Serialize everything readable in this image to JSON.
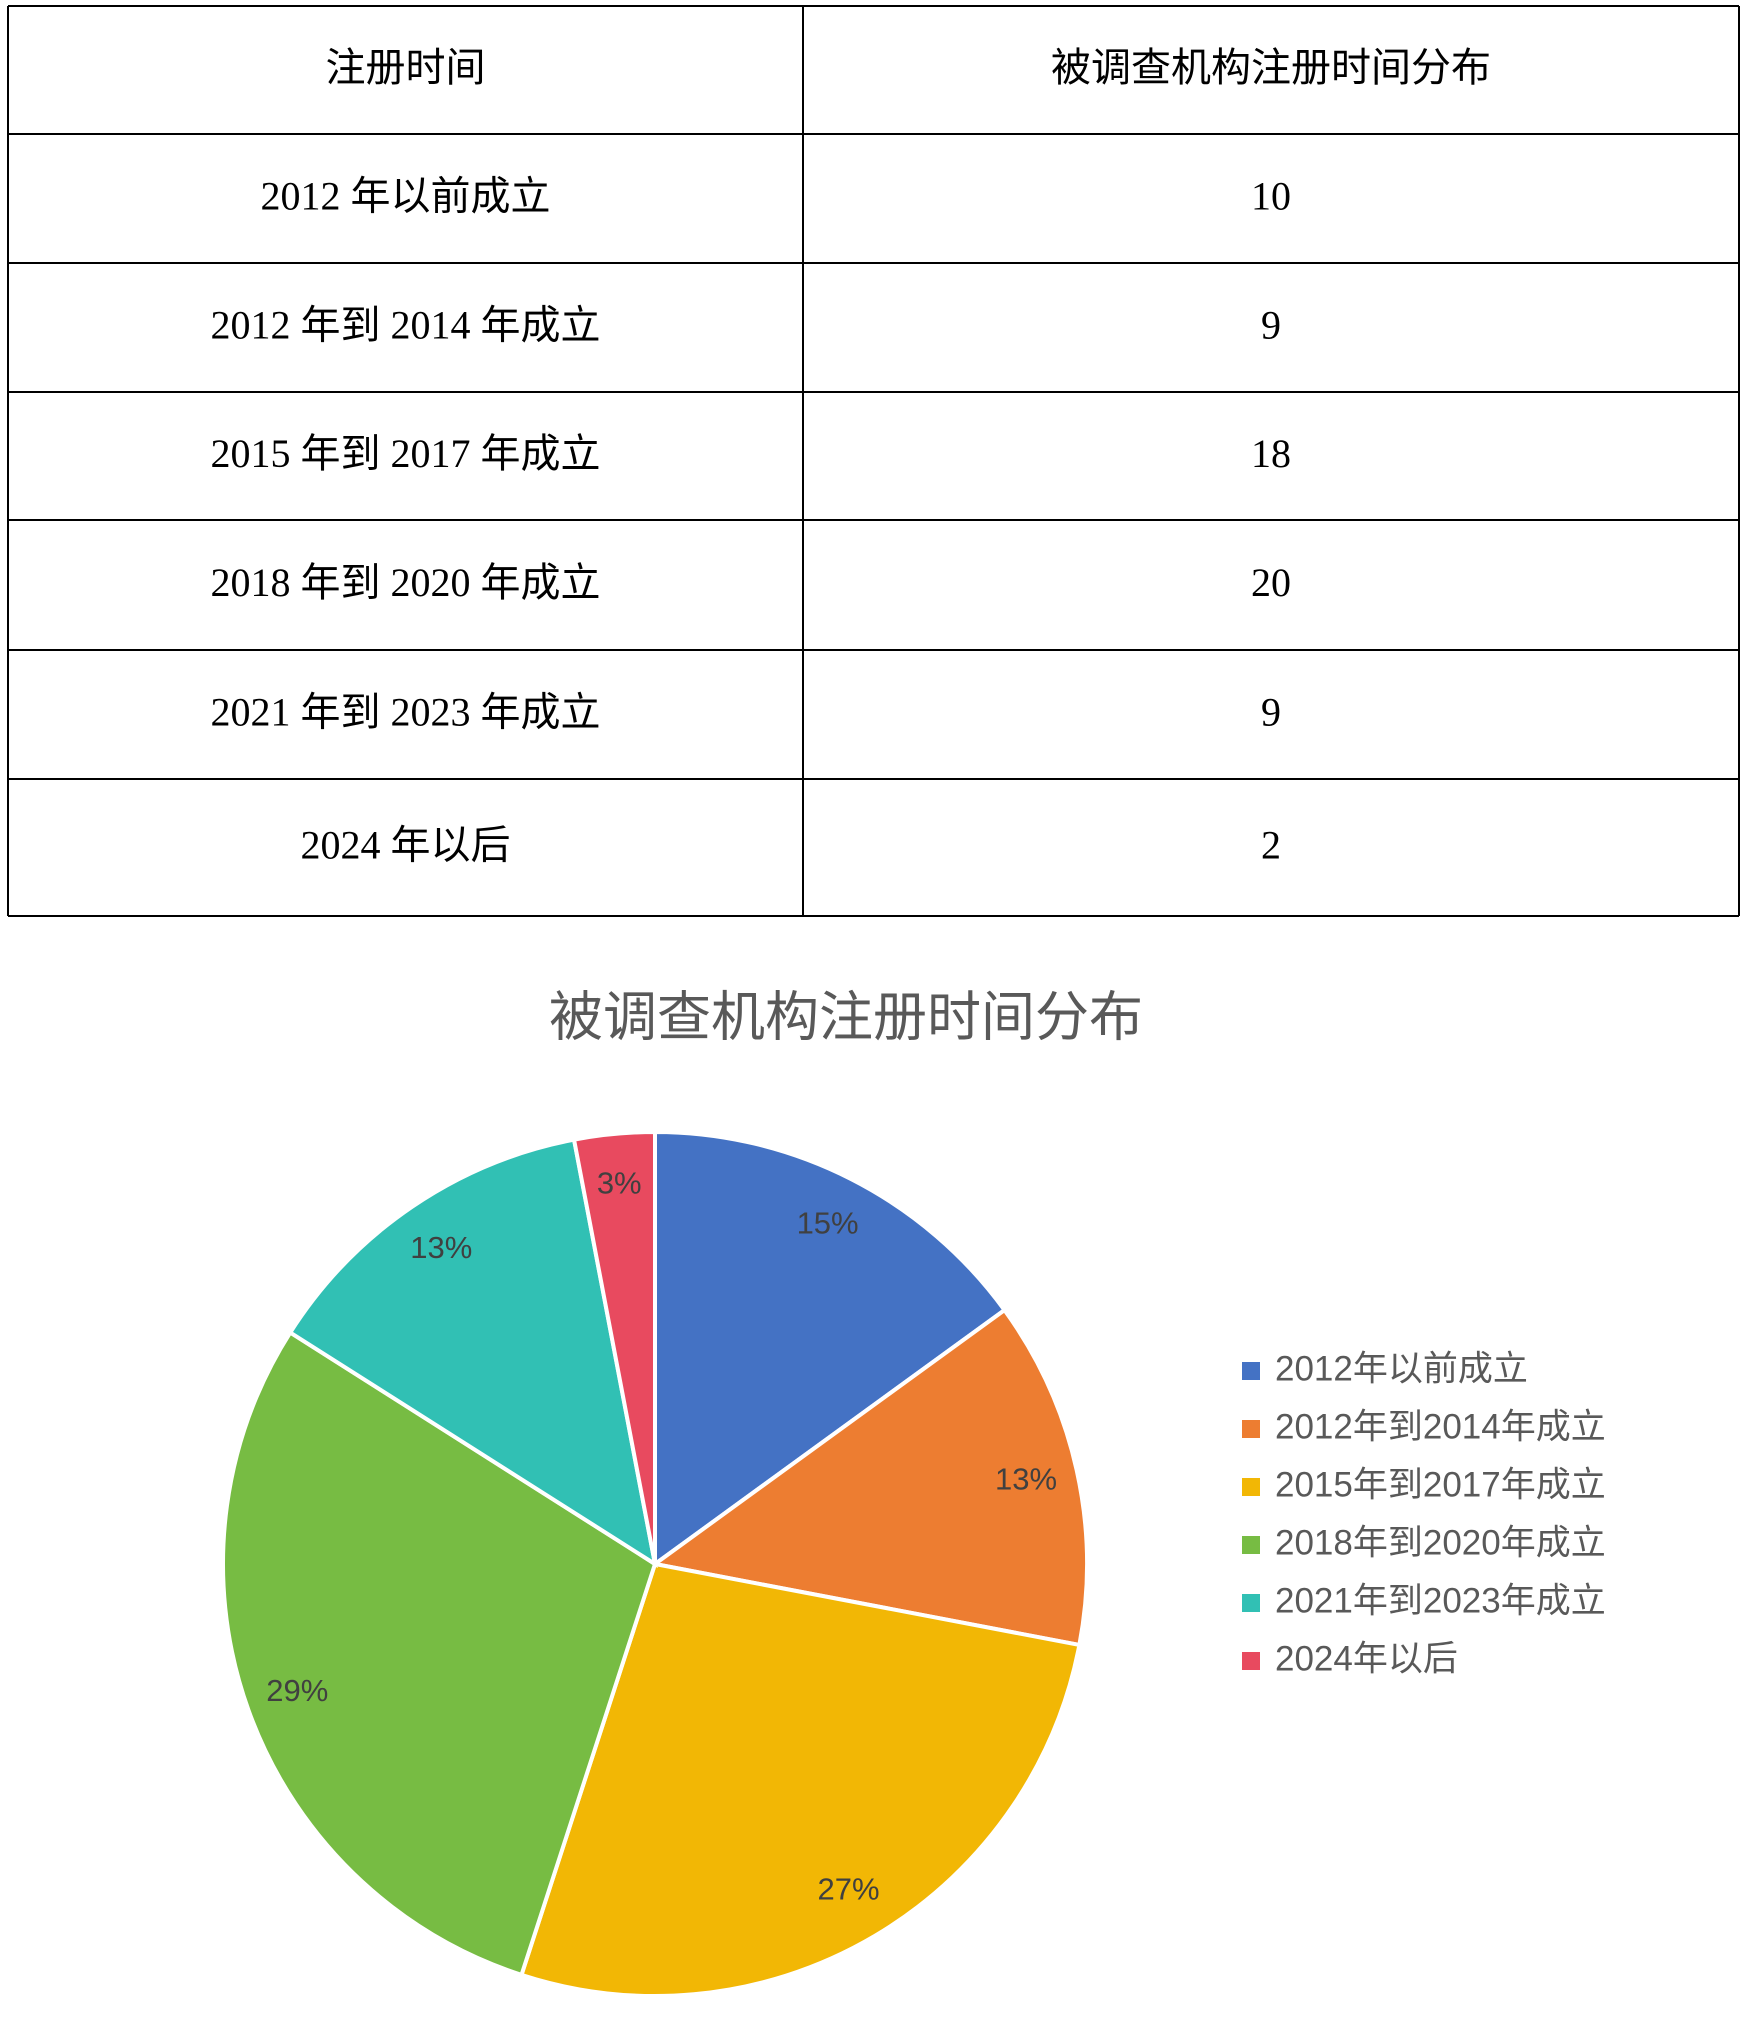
{
  "table": {
    "header": [
      "注册时间",
      "被调查机构注册时间分布"
    ],
    "rows": [
      [
        "2012 年以前成立",
        "10"
      ],
      [
        "2012 年到 2014 年成立",
        "9"
      ],
      [
        "2015 年到 2017 年成立",
        "18"
      ],
      [
        "2018 年到 2020 年成立",
        "20"
      ],
      [
        "2021 年到 2023 年成立",
        "9"
      ],
      [
        "2024 年以后",
        "2"
      ]
    ]
  },
  "chart_data": {
    "type": "pie",
    "title": "被调查机构注册时间分布",
    "categories": [
      "2012年以前成立",
      "2012年到2014年成立",
      "2015年到2017年成立",
      "2018年到2020年成立",
      "2021年到2023年成立",
      "2024年以后"
    ],
    "values": [
      15,
      13,
      27,
      29,
      13,
      3
    ],
    "value_labels": [
      "15%",
      "13%",
      "27%",
      "29%",
      "13%",
      "3%"
    ],
    "colors": [
      "#4472c4",
      "#ed7d31",
      "#f2b705",
      "#77bc43",
      "#31c0b4",
      "#e84a5f"
    ],
    "legend": "right"
  }
}
